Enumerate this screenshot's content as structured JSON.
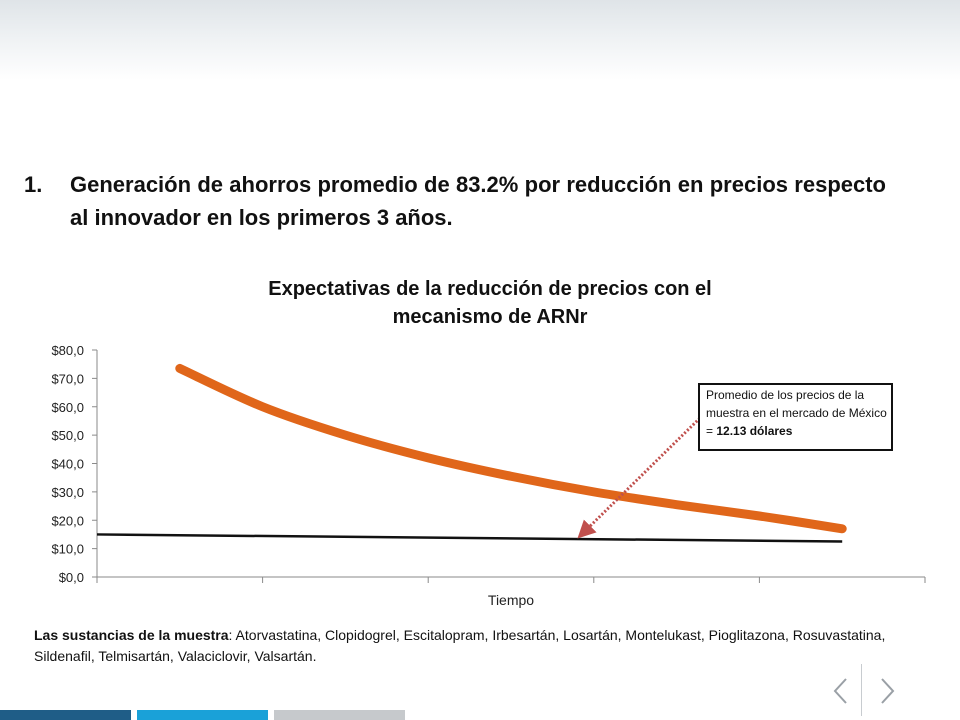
{
  "heading": {
    "number": "1.",
    "text": "Generación de ahorros promedio de 83.2% por reducción en precios respecto al innovador en los primeros 3 años."
  },
  "callout": {
    "text": "Promedio de los precios de la muestra en el mercado de México = ",
    "value": "12.13 dólares"
  },
  "footnote": {
    "label": "Las sustancias de la muestra",
    "text": ": Atorvastatina, Clopidogrel, Escitalopram, Irbesartán, Losartán, Montelukast, Pioglitazona, Rosuvastatina, Sildenafil, Telmisartán, Valaciclovir, Valsartán."
  },
  "colors": {
    "curve": "#e0661a",
    "reference_line": "#111111",
    "arrow": "#c0504d",
    "bar1": "#1f5d87",
    "bar2": "#1aa1d8",
    "bar3": "#c6c9cc"
  },
  "navigation": {
    "prev_icon": "chevron-left-icon",
    "next_icon": "chevron-right-icon"
  },
  "chart_data": {
    "type": "line",
    "title": "Expectativas de la reducción de precios con el mecanismo de ARNr",
    "xlabel": "Tiempo",
    "ylabel": "",
    "ylim": [
      0,
      80
    ],
    "yticks": [
      "$0,0",
      "$10,0",
      "$20,0",
      "$30,0",
      "$40,0",
      "$50,0",
      "$60,0",
      "$70,0",
      "$80,0"
    ],
    "xlim": [
      0,
      5
    ],
    "x_categories": 5,
    "series": [
      {
        "x": [
          0.5,
          1.0,
          1.5,
          2.0,
          2.5,
          3.0,
          3.5,
          4.0,
          4.5
        ],
        "values": [
          73.5,
          60.0,
          50.0,
          42.0,
          35.5,
          30.0,
          25.5,
          21.5,
          17.0
        ]
      },
      {
        "x": [
          0.0,
          4.5
        ],
        "values": [
          15.0,
          12.5
        ]
      }
    ]
  }
}
